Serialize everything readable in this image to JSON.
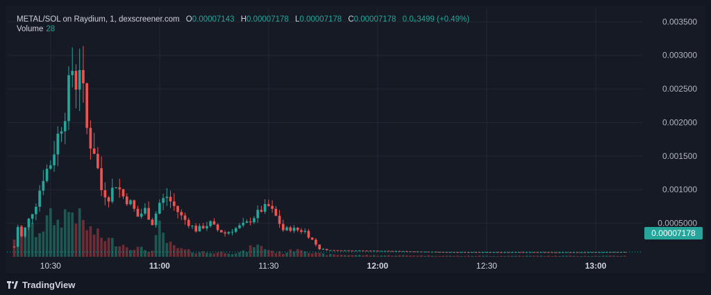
{
  "legend": {
    "title": "METAL/SOL on Raydium, 1, dexscreener.com",
    "open_label": "O",
    "open": "0.00007143",
    "high_label": "H",
    "high": "0.00007178",
    "low_label": "L",
    "low": "0.00007178",
    "close_label": "C",
    "close": "0.00007178",
    "change": "0.0₆3499 (+0.49%)"
  },
  "volume_legend": {
    "label": "Volume",
    "value": "28"
  },
  "last_price": "0.00007178",
  "brand": "TradingView",
  "colors": {
    "up": "#26a69a",
    "down": "#ef5350",
    "background": "#161a25",
    "grid": "#232733"
  },
  "chart_data": {
    "type": "candlestick",
    "x_axis": {
      "tick_labels": [
        "10:30",
        "11:00",
        "11:30",
        "12:00",
        "12:30",
        "13:00"
      ],
      "tick_minutes": [
        630,
        660,
        690,
        720,
        750,
        780
      ],
      "range_minutes": [
        618,
        793
      ],
      "unit": "time of day (1-minute candles)"
    },
    "y_axis": {
      "tick_labels": [
        "0.003500",
        "0.003000",
        "0.002500",
        "0.002000",
        "0.001500",
        "0.001000",
        "0.0005000"
      ],
      "ticks": [
        0.0035,
        0.003,
        0.0025,
        0.002,
        0.0015,
        0.001,
        0.0005
      ],
      "range": [
        0.0,
        0.0037
      ]
    },
    "grid": true,
    "price_points": [
      [
        620,
        0.00015
      ],
      [
        621,
        0.00045
      ],
      [
        622,
        0.0003
      ],
      [
        624,
        0.00055
      ],
      [
        626,
        0.0008
      ],
      [
        628,
        0.0012
      ],
      [
        630,
        0.0014
      ],
      [
        632,
        0.0018
      ],
      [
        634,
        0.0022
      ],
      [
        636,
        0.0028
      ],
      [
        637,
        0.0026
      ],
      [
        638,
        0.0029
      ],
      [
        640,
        0.0019
      ],
      [
        641,
        0.0017
      ],
      [
        642,
        0.0016
      ],
      [
        643,
        0.0013
      ],
      [
        644,
        0.001
      ],
      [
        646,
        0.0009
      ],
      [
        648,
        0.0011
      ],
      [
        650,
        0.0009
      ],
      [
        652,
        0.0008
      ],
      [
        654,
        0.0006
      ],
      [
        656,
        0.0007
      ],
      [
        658,
        0.0005
      ],
      [
        660,
        0.0008
      ],
      [
        662,
        0.0009
      ],
      [
        664,
        0.00075
      ],
      [
        666,
        0.0006
      ],
      [
        668,
        0.0005
      ],
      [
        670,
        0.0004
      ],
      [
        672,
        0.00045
      ],
      [
        674,
        0.0005
      ],
      [
        676,
        0.0004
      ],
      [
        678,
        0.00035
      ],
      [
        680,
        0.0004
      ],
      [
        682,
        0.00045
      ],
      [
        684,
        0.0005
      ],
      [
        686,
        0.0006
      ],
      [
        688,
        0.0007
      ],
      [
        690,
        0.00075
      ],
      [
        692,
        0.0006
      ],
      [
        694,
        0.0004
      ],
      [
        696,
        0.00042
      ],
      [
        698,
        0.0004
      ],
      [
        700,
        0.00038
      ],
      [
        702,
        0.00025
      ],
      [
        704,
        0.00012
      ],
      [
        706,
        0.0001
      ],
      [
        712,
        9.5e-05
      ],
      [
        720,
        9e-05
      ],
      [
        730,
        8e-05
      ],
      [
        740,
        7e-05
      ],
      [
        750,
        7e-05
      ],
      [
        760,
        7e-05
      ],
      [
        770,
        6.8e-05
      ],
      [
        780,
        7e-05
      ],
      [
        788,
        7.178e-05
      ]
    ],
    "volume_points": [
      [
        620,
        0.42
      ],
      [
        622,
        0.55
      ],
      [
        624,
        0.6
      ],
      [
        626,
        0.5
      ],
      [
        628,
        0.62
      ],
      [
        630,
        0.85
      ],
      [
        632,
        0.7
      ],
      [
        634,
        0.9
      ],
      [
        636,
        0.95
      ],
      [
        638,
        0.8
      ],
      [
        640,
        0.6
      ],
      [
        642,
        0.5
      ],
      [
        644,
        0.4
      ],
      [
        646,
        0.35
      ],
      [
        648,
        0.3
      ],
      [
        650,
        0.25
      ],
      [
        652,
        0.2
      ],
      [
        654,
        0.18
      ],
      [
        656,
        0.15
      ],
      [
        658,
        0.12
      ],
      [
        660,
        0.6
      ],
      [
        662,
        0.3
      ],
      [
        664,
        0.2
      ],
      [
        666,
        0.15
      ],
      [
        668,
        0.12
      ],
      [
        670,
        0.1
      ],
      [
        672,
        0.1
      ],
      [
        674,
        0.08
      ],
      [
        676,
        0.09
      ],
      [
        678,
        0.1
      ],
      [
        680,
        0.08
      ],
      [
        682,
        0.09
      ],
      [
        684,
        0.12
      ],
      [
        686,
        0.25
      ],
      [
        688,
        0.2
      ],
      [
        690,
        0.15
      ],
      [
        692,
        0.1
      ],
      [
        694,
        0.08
      ],
      [
        696,
        0.12
      ],
      [
        698,
        0.18
      ],
      [
        700,
        0.15
      ],
      [
        702,
        0.08
      ],
      [
        706,
        0.05
      ],
      [
        712,
        0.04
      ],
      [
        720,
        0.03
      ],
      [
        730,
        0.03
      ],
      [
        740,
        0.02
      ],
      [
        750,
        0.02
      ],
      [
        760,
        0.02
      ],
      [
        770,
        0.02
      ],
      [
        780,
        0.02
      ],
      [
        788,
        0.02
      ]
    ]
  }
}
